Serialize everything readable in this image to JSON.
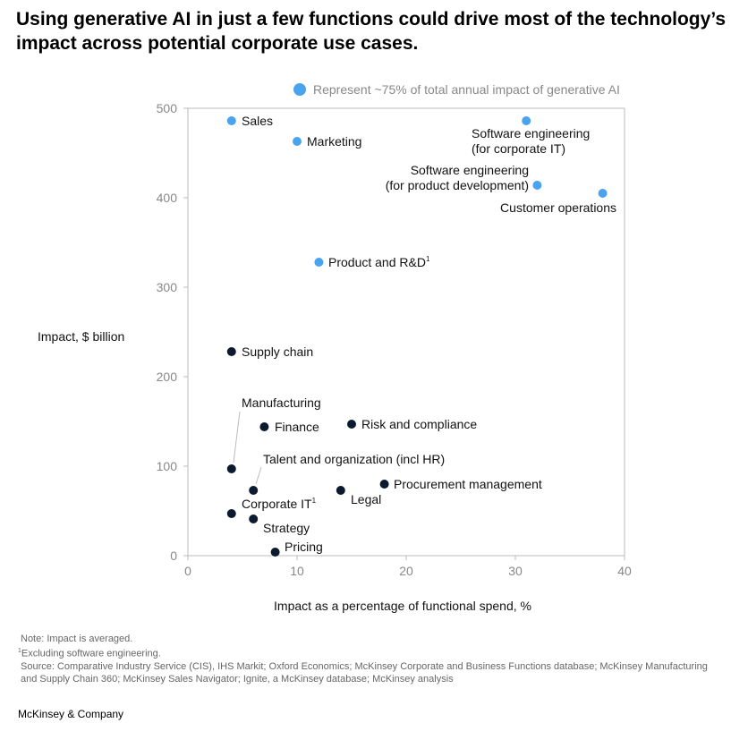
{
  "title": "Using generative AI in just a few functions could drive most of the technology’s impact across potential corporate use cases.",
  "notes": {
    "note": "Note: Impact is averaged.",
    "footnote_mark": "1",
    "footnote": "Excluding software engineering.",
    "source_line1": "Source: Comparative Industry Service (CIS), IHS Markit; Oxford Economics; McKinsey Corporate and Business Functions database; McKinsey Manufacturing",
    "source_line2": "and Supply Chain 360; McKinsey Sales Navigator; Ignite, a McKinsey database; McKinsey analysis"
  },
  "brand": "McKinsey & Company",
  "chart_data": {
    "type": "scatter",
    "xlabel": "Impact as a percentage of functional spend, %",
    "ylabel": "Impact, $ billion",
    "xlim": [
      0,
      40
    ],
    "ylim": [
      0,
      500
    ],
    "xticks": [
      "0",
      "10",
      "20",
      "30",
      "40"
    ],
    "yticks": [
      "0",
      "100",
      "200",
      "300",
      "400",
      "500"
    ],
    "grid": false,
    "legend": {
      "label": "Represent ~75% of total annual impact of generative AI",
      "placement": "top",
      "color": "#4aa3ef"
    },
    "colors": {
      "highlight": "#4aa3ef",
      "other": "#0b1a2e"
    },
    "points": [
      {
        "label": "Sales",
        "x": 4,
        "y": 486,
        "highlight": true
      },
      {
        "label": "Marketing",
        "x": 10,
        "y": 463,
        "highlight": true
      },
      {
        "label": "Software engineering|(for corporate IT)",
        "x": 31,
        "y": 486,
        "highlight": true
      },
      {
        "label": "Software engineering|(for product development)",
        "x": 32,
        "y": 414,
        "highlight": true
      },
      {
        "label": "Customer operations",
        "x": 38,
        "y": 405,
        "highlight": true
      },
      {
        "label": "Product and R&D",
        "sup": "1",
        "x": 12,
        "y": 328,
        "highlight": true
      },
      {
        "label": "Supply chain",
        "x": 4,
        "y": 228,
        "highlight": false
      },
      {
        "label": "Manufacturing",
        "x": 4,
        "y": 97,
        "highlight": false
      },
      {
        "label": "Finance",
        "x": 7,
        "y": 144,
        "highlight": false
      },
      {
        "label": "Risk and compliance",
        "x": 15,
        "y": 147,
        "highlight": false
      },
      {
        "label": "Talent and organization (incl HR)",
        "x": 6,
        "y": 73,
        "highlight": false
      },
      {
        "label": "Legal",
        "x": 14,
        "y": 73,
        "highlight": false
      },
      {
        "label": "Procurement management",
        "x": 18,
        "y": 80,
        "highlight": false
      },
      {
        "label": "Corporate IT",
        "sup": "1",
        "x": 4,
        "y": 47,
        "highlight": false
      },
      {
        "label": "Strategy",
        "x": 6,
        "y": 41,
        "highlight": false
      },
      {
        "label": "Pricing",
        "x": 8,
        "y": 4,
        "highlight": false
      }
    ]
  }
}
